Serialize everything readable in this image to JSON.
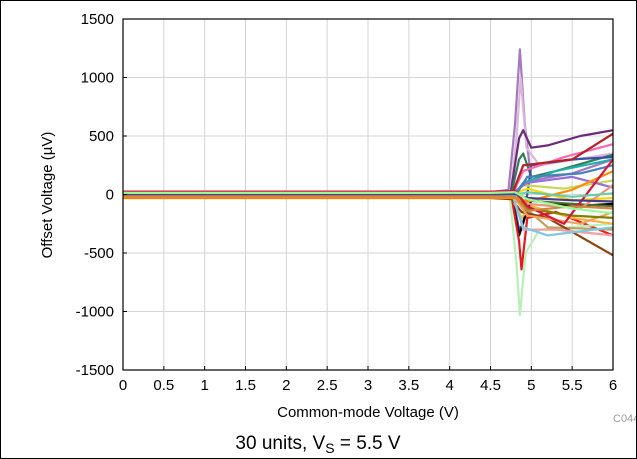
{
  "chart_data": {
    "type": "line",
    "title": "",
    "xlabel": "Common-mode Voltage (V)",
    "ylabel": "Offset Voltage (µV)",
    "xlim": [
      0,
      6
    ],
    "ylim": [
      -1500,
      1500
    ],
    "x_ticks": [
      0,
      0.5,
      1,
      1.5,
      2,
      2.5,
      3,
      3.5,
      4,
      4.5,
      5,
      5.5,
      6
    ],
    "x_tick_labels": [
      "0",
      "0.5",
      "1",
      "1.5",
      "2",
      "2.5",
      "3",
      "3.5",
      "4",
      "4.5",
      "5",
      "5.5",
      "6"
    ],
    "y_ticks": [
      -1500,
      -1000,
      -500,
      0,
      500,
      1000,
      1500
    ],
    "y_tick_labels": [
      "-1500",
      "-1000",
      "-500",
      "0",
      "500",
      "1000",
      "1500"
    ],
    "grid": true,
    "legend": "none",
    "figure_id": "C044",
    "caption": {
      "main": "30 units, V",
      "sub": "S",
      "rest": " = 5.5 V"
    },
    "series": [
      {
        "color": "#a678c0",
        "points": [
          [
            0,
            20
          ],
          [
            4.5,
            20
          ],
          [
            4.72,
            40
          ],
          [
            4.8,
            600
          ],
          [
            4.86,
            1240
          ],
          [
            4.92,
            600
          ],
          [
            5.0,
            120
          ],
          [
            5.5,
            180
          ],
          [
            6,
            300
          ]
        ]
      },
      {
        "color": "#d9b8d9",
        "points": [
          [
            0,
            15
          ],
          [
            4.5,
            15
          ],
          [
            4.75,
            30
          ],
          [
            4.82,
            500
          ],
          [
            4.87,
            1000
          ],
          [
            4.94,
            400
          ],
          [
            5.1,
            250
          ],
          [
            6,
            350
          ]
        ]
      },
      {
        "color": "#6b2a7a",
        "points": [
          [
            0,
            10
          ],
          [
            4.5,
            10
          ],
          [
            4.75,
            30
          ],
          [
            4.85,
            480
          ],
          [
            4.9,
            550
          ],
          [
            5.0,
            400
          ],
          [
            5.2,
            420
          ],
          [
            5.6,
            500
          ],
          [
            6,
            550
          ]
        ]
      },
      {
        "color": "#2e7d5b",
        "points": [
          [
            0,
            5
          ],
          [
            4.5,
            5
          ],
          [
            4.76,
            20
          ],
          [
            4.85,
            300
          ],
          [
            4.9,
            350
          ],
          [
            5.0,
            150
          ],
          [
            5.3,
            200
          ],
          [
            6,
            340
          ]
        ]
      },
      {
        "color": "#3a4fa8",
        "points": [
          [
            0,
            0
          ],
          [
            4.5,
            0
          ],
          [
            4.76,
            10
          ],
          [
            4.85,
            -300
          ],
          [
            4.9,
            -250
          ],
          [
            5.0,
            250
          ],
          [
            5.5,
            300
          ],
          [
            6,
            320
          ]
        ]
      },
      {
        "color": "#000000",
        "points": [
          [
            0,
            -5
          ],
          [
            4.5,
            -5
          ],
          [
            4.76,
            -20
          ],
          [
            4.85,
            -350
          ],
          [
            4.92,
            -200
          ],
          [
            5.0,
            -50
          ],
          [
            5.5,
            -100
          ],
          [
            6,
            -80
          ]
        ]
      },
      {
        "color": "#e41a1c",
        "points": [
          [
            0,
            -10
          ],
          [
            4.5,
            -10
          ],
          [
            4.76,
            -30
          ],
          [
            4.85,
            -400
          ],
          [
            4.88,
            -640
          ],
          [
            4.95,
            -200
          ],
          [
            5.3,
            -150
          ],
          [
            6,
            -350
          ]
        ]
      },
      {
        "color": "#b8f0b8",
        "points": [
          [
            0,
            -15
          ],
          [
            4.5,
            -15
          ],
          [
            4.74,
            -40
          ],
          [
            4.82,
            -600
          ],
          [
            4.86,
            -1030
          ],
          [
            4.93,
            -500
          ],
          [
            5.1,
            -300
          ],
          [
            6,
            -250
          ]
        ]
      },
      {
        "color": "#ffb347",
        "points": [
          [
            0,
            -20
          ],
          [
            4.5,
            -20
          ],
          [
            4.76,
            -30
          ],
          [
            4.88,
            -200
          ],
          [
            5.0,
            -100
          ],
          [
            5.5,
            -200
          ],
          [
            6,
            -250
          ]
        ]
      },
      {
        "color": "#c0a060",
        "points": [
          [
            0,
            -25
          ],
          [
            4.5,
            -25
          ],
          [
            4.76,
            -30
          ],
          [
            4.9,
            -100
          ],
          [
            5.2,
            -280
          ],
          [
            6,
            -300
          ]
        ]
      },
      {
        "color": "#8b4513",
        "points": [
          [
            0,
            -30
          ],
          [
            4.5,
            -30
          ],
          [
            4.76,
            -40
          ],
          [
            4.88,
            -150
          ],
          [
            5.2,
            -200
          ],
          [
            6,
            -520
          ]
        ]
      },
      {
        "color": "#f0a0a0",
        "points": [
          [
            0,
            -8
          ],
          [
            4.5,
            -8
          ],
          [
            4.78,
            -20
          ],
          [
            4.9,
            -300
          ],
          [
            5.3,
            -300
          ],
          [
            6,
            -350
          ]
        ]
      },
      {
        "color": "#c8d85a",
        "points": [
          [
            0,
            3
          ],
          [
            4.5,
            3
          ],
          [
            4.78,
            10
          ],
          [
            4.9,
            80
          ],
          [
            5.4,
            50
          ],
          [
            6,
            120
          ]
        ]
      },
      {
        "color": "#ff69b4",
        "points": [
          [
            0,
            8
          ],
          [
            4.5,
            8
          ],
          [
            4.78,
            20
          ],
          [
            4.9,
            200
          ],
          [
            5.4,
            320
          ],
          [
            6,
            430
          ]
        ]
      },
      {
        "color": "#20b2aa",
        "points": [
          [
            0,
            -3
          ],
          [
            4.5,
            -3
          ],
          [
            4.78,
            -10
          ],
          [
            4.9,
            100
          ],
          [
            5.3,
            200
          ],
          [
            6,
            300
          ]
        ]
      },
      {
        "color": "#7ec8e3",
        "points": [
          [
            0,
            -12
          ],
          [
            4.5,
            -12
          ],
          [
            4.78,
            -30
          ],
          [
            4.9,
            -280
          ],
          [
            5.2,
            -350
          ],
          [
            6,
            -280
          ]
        ]
      },
      {
        "color": "#b22222",
        "points": [
          [
            0,
            12
          ],
          [
            4.5,
            12
          ],
          [
            4.78,
            30
          ],
          [
            4.9,
            250
          ],
          [
            5.5,
            300
          ],
          [
            6,
            520
          ]
        ]
      },
      {
        "color": "#556b2f",
        "points": [
          [
            0,
            -18
          ],
          [
            4.5,
            -18
          ],
          [
            4.78,
            -25
          ],
          [
            4.9,
            -50
          ],
          [
            5.5,
            -80
          ],
          [
            6,
            -100
          ]
        ]
      },
      {
        "color": "#ffd700",
        "points": [
          [
            0,
            0
          ],
          [
            4.5,
            0
          ],
          [
            4.8,
            10
          ],
          [
            4.95,
            50
          ],
          [
            5.5,
            -50
          ],
          [
            6,
            -30
          ]
        ]
      },
      {
        "color": "#9370db",
        "points": [
          [
            0,
            18
          ],
          [
            4.5,
            18
          ],
          [
            4.8,
            30
          ],
          [
            4.95,
            100
          ],
          [
            5.5,
            150
          ],
          [
            6,
            60
          ]
        ]
      },
      {
        "color": "#f4a460",
        "points": [
          [
            0,
            -22
          ],
          [
            4.5,
            -22
          ],
          [
            4.8,
            -30
          ],
          [
            4.95,
            -180
          ],
          [
            5.6,
            -250
          ],
          [
            6,
            -150
          ]
        ]
      },
      {
        "color": "#e9967a",
        "points": [
          [
            0,
            6
          ],
          [
            4.5,
            6
          ],
          [
            4.8,
            15
          ],
          [
            4.95,
            -80
          ],
          [
            5.6,
            -120
          ],
          [
            6,
            80
          ]
        ]
      },
      {
        "color": "#4682b4",
        "points": [
          [
            0,
            -6
          ],
          [
            4.5,
            -6
          ],
          [
            4.8,
            -15
          ],
          [
            4.95,
            150
          ],
          [
            5.6,
            180
          ],
          [
            6,
            250
          ]
        ]
      },
      {
        "color": "#808000",
        "points": [
          [
            0,
            10
          ],
          [
            4.5,
            10
          ],
          [
            4.8,
            20
          ],
          [
            4.95,
            -120
          ],
          [
            5.5,
            -180
          ],
          [
            6,
            -200
          ]
        ]
      },
      {
        "color": "#ff8c00",
        "points": [
          [
            0,
            -28
          ],
          [
            4.5,
            -28
          ],
          [
            4.8,
            -30
          ],
          [
            4.95,
            -60
          ],
          [
            5.5,
            40
          ],
          [
            6,
            200
          ]
        ]
      },
      {
        "color": "#dc143c",
        "points": [
          [
            0,
            25
          ],
          [
            4.5,
            25
          ],
          [
            4.8,
            30
          ],
          [
            4.95,
            -100
          ],
          [
            5.4,
            -250
          ],
          [
            6,
            300
          ]
        ]
      },
      {
        "color": "#66cdaa",
        "points": [
          [
            0,
            -2
          ],
          [
            4.5,
            -2
          ],
          [
            4.8,
            -5
          ],
          [
            4.95,
            20
          ],
          [
            5.5,
            -20
          ],
          [
            6,
            10
          ]
        ]
      },
      {
        "color": "#483d8b",
        "points": [
          [
            0,
            2
          ],
          [
            4.5,
            2
          ],
          [
            4.8,
            5
          ],
          [
            4.95,
            -30
          ],
          [
            5.5,
            -50
          ],
          [
            6,
            -60
          ]
        ]
      },
      {
        "color": "#cd853f",
        "points": [
          [
            0,
            -15
          ],
          [
            4.5,
            -15
          ],
          [
            4.8,
            -20
          ],
          [
            4.95,
            -140
          ],
          [
            5.5,
            -100
          ],
          [
            6,
            -120
          ]
        ]
      },
      {
        "color": "#98fb98",
        "points": [
          [
            0,
            14
          ],
          [
            4.5,
            14
          ],
          [
            4.8,
            20
          ],
          [
            4.95,
            -40
          ],
          [
            5.5,
            -120
          ],
          [
            6,
            -160
          ]
        ]
      }
    ]
  }
}
